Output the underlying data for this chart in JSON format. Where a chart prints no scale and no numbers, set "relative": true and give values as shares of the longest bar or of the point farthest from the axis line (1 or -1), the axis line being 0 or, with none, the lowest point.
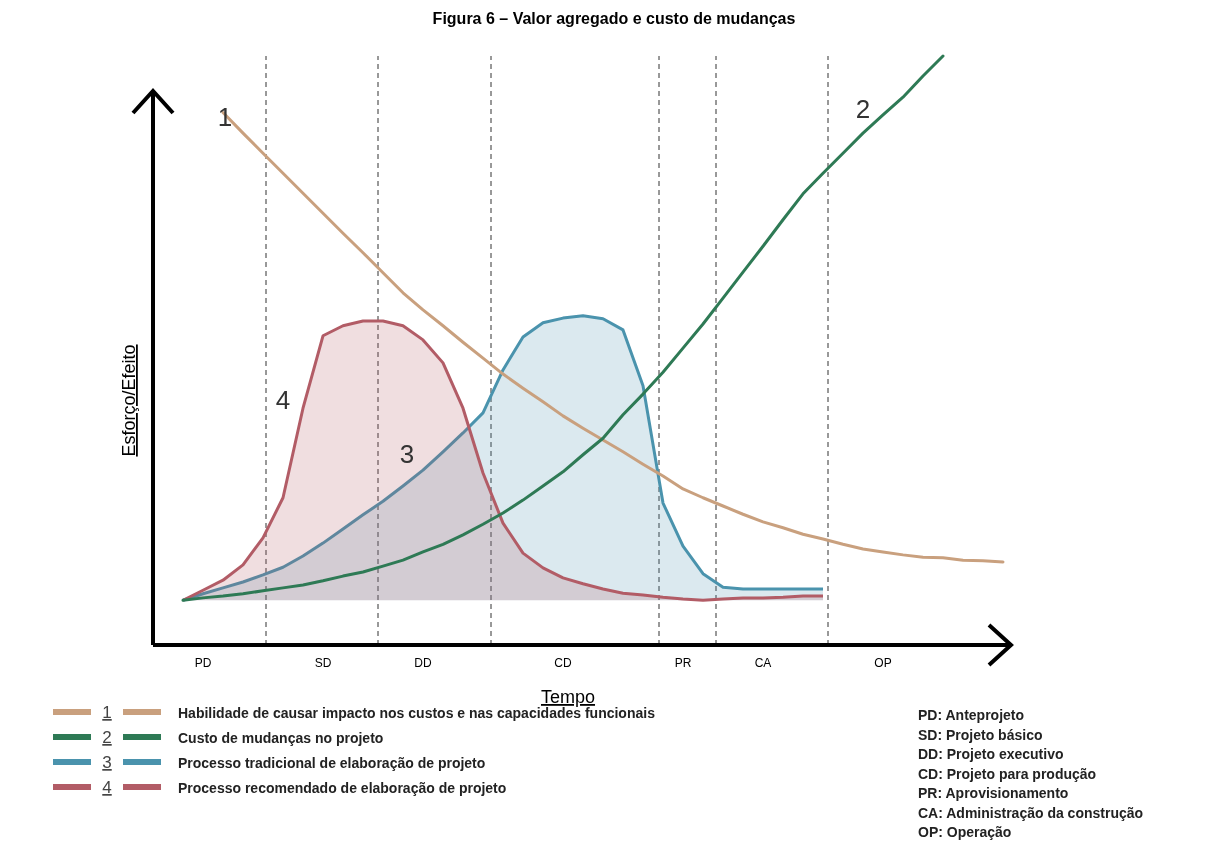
{
  "chart_data": {
    "type": "line",
    "title": "Figura 6 – Valor agregado e custo de mudanças",
    "xlabel": "Tempo",
    "ylabel": "Esforço/Efeito",
    "relative": true,
    "categories": [
      null,
      "PD",
      null,
      null,
      null,
      null,
      null,
      "SD",
      null,
      null,
      null,
      null,
      "DD",
      null,
      null,
      null,
      null,
      null,
      null,
      "CD",
      null,
      null,
      null,
      null,
      null,
      "PR",
      null,
      null,
      null,
      "CA",
      null,
      null,
      null,
      null,
      null,
      "OP",
      null,
      null,
      null,
      null,
      null,
      null
    ],
    "series": [
      {
        "name": "Habilidade de causar impacto nos custos e nas capacidades funcionais",
        "color": "#c9a07e",
        "values": [
          null,
          null,
          0.904,
          0.869,
          0.835,
          0.801,
          0.767,
          0.733,
          0.699,
          0.666,
          0.632,
          0.598,
          0.569,
          0.542,
          0.514,
          0.487,
          0.46,
          0.436,
          0.413,
          0.389,
          0.368,
          0.348,
          0.328,
          0.307,
          0.287,
          0.265,
          0.25,
          0.236,
          0.222,
          0.209,
          0.199,
          0.188,
          0.18,
          0.171,
          0.163,
          0.158,
          0.153,
          0.149,
          0.148,
          0.144,
          0.143,
          0.141
        ]
      },
      {
        "name": "Custo de mudanças no projeto",
        "color": "#2e7a55",
        "values": [
          0.076,
          0.08,
          0.083,
          0.087,
          0.092,
          0.097,
          0.102,
          0.109,
          0.117,
          0.124,
          0.134,
          0.144,
          0.158,
          0.171,
          0.187,
          0.205,
          0.224,
          0.246,
          0.27,
          0.294,
          0.323,
          0.351,
          0.391,
          0.426,
          0.463,
          0.504,
          0.545,
          0.589,
          0.633,
          0.677,
          0.722,
          0.766,
          0.801,
          0.835,
          0.869,
          0.9,
          0.93,
          0.966,
          1,
          null,
          null,
          null
        ]
      },
      {
        "name": "Processo tradicional de elaboração de projeto",
        "color": "#4a93ad",
        "type": "area",
        "values": [
          0.076,
          0.087,
          0.097,
          0.107,
          0.119,
          0.132,
          0.151,
          0.173,
          0.197,
          0.221,
          0.244,
          0.27,
          0.297,
          0.328,
          0.36,
          0.394,
          0.467,
          0.523,
          0.547,
          0.555,
          0.559,
          0.554,
          0.535,
          0.44,
          0.241,
          0.168,
          0.121,
          0.098,
          0.095,
          0.095,
          0.095,
          0.095,
          0.095,
          null,
          null,
          null,
          null,
          null,
          null,
          null,
          null,
          null
        ]
      },
      {
        "name": "Processo recomendado de elaboração de projeto",
        "color": "#b25c66",
        "type": "area",
        "values": [
          0.076,
          0.093,
          0.11,
          0.136,
          0.182,
          0.25,
          0.402,
          0.525,
          0.542,
          0.55,
          0.55,
          0.542,
          0.518,
          0.479,
          0.402,
          0.292,
          0.207,
          0.156,
          0.131,
          0.114,
          0.104,
          0.095,
          0.088,
          0.085,
          0.081,
          0.078,
          0.076,
          0.078,
          0.08,
          0.08,
          0.081,
          0.083,
          0.083,
          null,
          null,
          null,
          null,
          null,
          null,
          null,
          null,
          null
        ]
      }
    ],
    "annotations": [
      "1",
      "2",
      "3",
      "4",
      "PD: Anteprojeto",
      "SD: Projeto básico",
      "DD: Projeto executivo",
      "CD: Projeto para produção",
      "PR: Aprovisionamento",
      "CA: Administração da construção",
      "OP: Operação"
    ],
    "legend": "bottom left"
  }
}
